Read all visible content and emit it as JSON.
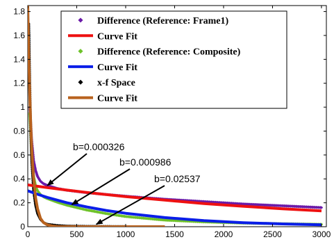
{
  "chart_data": {
    "type": "line",
    "title": "",
    "xlabel": "",
    "ylabel": "",
    "xlim": [
      0,
      3050
    ],
    "ylim": [
      0,
      1.85
    ],
    "x_ticks": [
      0,
      500,
      1000,
      1500,
      2000,
      2500,
      3000
    ],
    "y_ticks": [
      0,
      0.2,
      0.4,
      0.6,
      0.8,
      1,
      1.2,
      1.4,
      1.6,
      1.8
    ],
    "x_tick_labels": [
      "0",
      "500",
      "1000",
      "1500",
      "2000",
      "2500",
      "3000"
    ],
    "y_tick_labels": [
      "0",
      "0.2",
      "0.4",
      "0.6",
      "0.8",
      "1",
      "1.2",
      "1.4",
      "1.6",
      "1.8"
    ],
    "grid": false,
    "legend_position": "top-right",
    "legend": [
      {
        "label": "Difference (Reference: Frame1)",
        "marker": "diamond",
        "color": "#6a1aa8"
      },
      {
        "label": "Curve Fit",
        "marker": "line",
        "color": "#ee1111"
      },
      {
        "label": "Difference (Reference: Composite)",
        "marker": "diamond",
        "color": "#6ec22a"
      },
      {
        "label": "Curve Fit",
        "marker": "line",
        "color": "#0a1ee8"
      },
      {
        "label": "x-f Space",
        "marker": "diamond",
        "color": "#000000"
      },
      {
        "label": "Curve Fit",
        "marker": "line",
        "color": "#b8621e"
      }
    ],
    "series": [
      {
        "kind": "points",
        "color": "#6a1aa8",
        "x": [
          20,
          40,
          60,
          80,
          100,
          130,
          160,
          200,
          300,
          400,
          600,
          800,
          1000,
          1400,
          1800,
          2200,
          2600,
          3000
        ],
        "y": [
          1.0,
          0.72,
          0.55,
          0.47,
          0.42,
          0.38,
          0.36,
          0.345,
          0.32,
          0.305,
          0.285,
          0.27,
          0.255,
          0.23,
          0.21,
          0.19,
          0.175,
          0.16
        ]
      },
      {
        "kind": "fit",
        "color": "#ee1111",
        "x": [
          0,
          100,
          200,
          400,
          600,
          800,
          1000,
          1400,
          1800,
          2200,
          2600,
          3000
        ],
        "y": [
          0.35,
          0.338,
          0.327,
          0.306,
          0.287,
          0.269,
          0.252,
          0.222,
          0.194,
          0.171,
          0.15,
          0.132
        ]
      },
      {
        "kind": "points",
        "color": "#6ec22a",
        "x": [
          20,
          40,
          60,
          80,
          100,
          130,
          160,
          200,
          300,
          400,
          600,
          800,
          1000,
          1400,
          1800,
          2200,
          2600,
          3000
        ],
        "y": [
          0.95,
          0.6,
          0.42,
          0.34,
          0.3,
          0.27,
          0.25,
          0.235,
          0.205,
          0.18,
          0.14,
          0.11,
          0.085,
          0.055,
          0.04,
          0.03,
          0.025,
          0.02
        ]
      },
      {
        "kind": "fit",
        "color": "#0a1ee8",
        "x": [
          0,
          100,
          200,
          400,
          600,
          800,
          1000,
          1400,
          1800,
          2200,
          2600,
          3000
        ],
        "y": [
          0.3,
          0.271,
          0.245,
          0.2,
          0.166,
          0.136,
          0.112,
          0.076,
          0.051,
          0.034,
          0.023,
          0.016
        ]
      },
      {
        "kind": "points",
        "color": "#000000",
        "x": [
          10,
          20,
          30,
          40,
          60,
          80,
          100,
          130,
          160,
          200,
          300,
          400,
          600,
          800,
          1000
        ],
        "y": [
          1.7,
          1.2,
          0.8,
          0.55,
          0.3,
          0.18,
          0.11,
          0.06,
          0.035,
          0.02,
          0.01,
          0.005,
          0.003,
          0.002,
          0.001
        ]
      },
      {
        "kind": "fit",
        "color": "#b8621e",
        "x": [
          0,
          10,
          20,
          30,
          40,
          50,
          60,
          80,
          100,
          130,
          160,
          200,
          250,
          300,
          400,
          600,
          1000,
          1400
        ],
        "y": [
          1.85,
          1.44,
          1.12,
          0.87,
          0.67,
          0.52,
          0.4,
          0.24,
          0.15,
          0.07,
          0.035,
          0.015,
          0.006,
          0.002,
          0.0005,
          0.0001,
          0.0,
          0.0
        ]
      }
    ],
    "annotations": [
      {
        "text": "b=0.000326",
        "arrow_to": {
          "x": 200,
          "y": 0.345
        }
      },
      {
        "text": "b=0.000986",
        "arrow_to": {
          "x": 450,
          "y": 0.185
        }
      },
      {
        "text": "b=0.02537",
        "arrow_to": {
          "x": 700,
          "y": 0.02
        }
      }
    ]
  }
}
